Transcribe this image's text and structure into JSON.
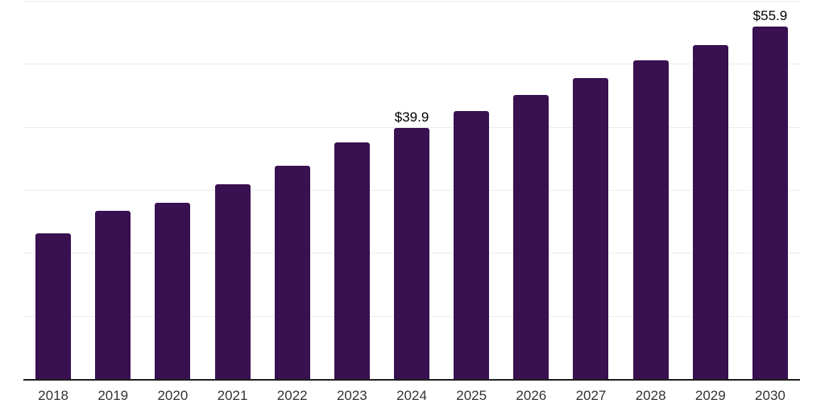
{
  "chart_data": {
    "type": "bar",
    "title": "",
    "xlabel": "",
    "ylabel": "",
    "categories": [
      "2018",
      "2019",
      "2020",
      "2021",
      "2022",
      "2023",
      "2024",
      "2025",
      "2026",
      "2027",
      "2028",
      "2029",
      "2030"
    ],
    "values": [
      23.1,
      26.7,
      28.0,
      30.9,
      33.8,
      37.5,
      39.9,
      42.5,
      45.1,
      47.7,
      50.6,
      53.0,
      55.9
    ],
    "data_labels": [
      "",
      "",
      "",
      "",
      "",
      "",
      "$39.9",
      "",
      "",
      "",
      "",
      "",
      "$55.9"
    ],
    "ylim": [
      0,
      60
    ],
    "gridline_step": 10,
    "grid": "horizontal-only",
    "legend": "none",
    "y_tick_labels_visible": false,
    "colors": {
      "bar": "#391050",
      "axis_line": "#1f1f1f",
      "gridline": "#ededed",
      "tick_label": "#333333",
      "data_label": "#000000"
    }
  }
}
